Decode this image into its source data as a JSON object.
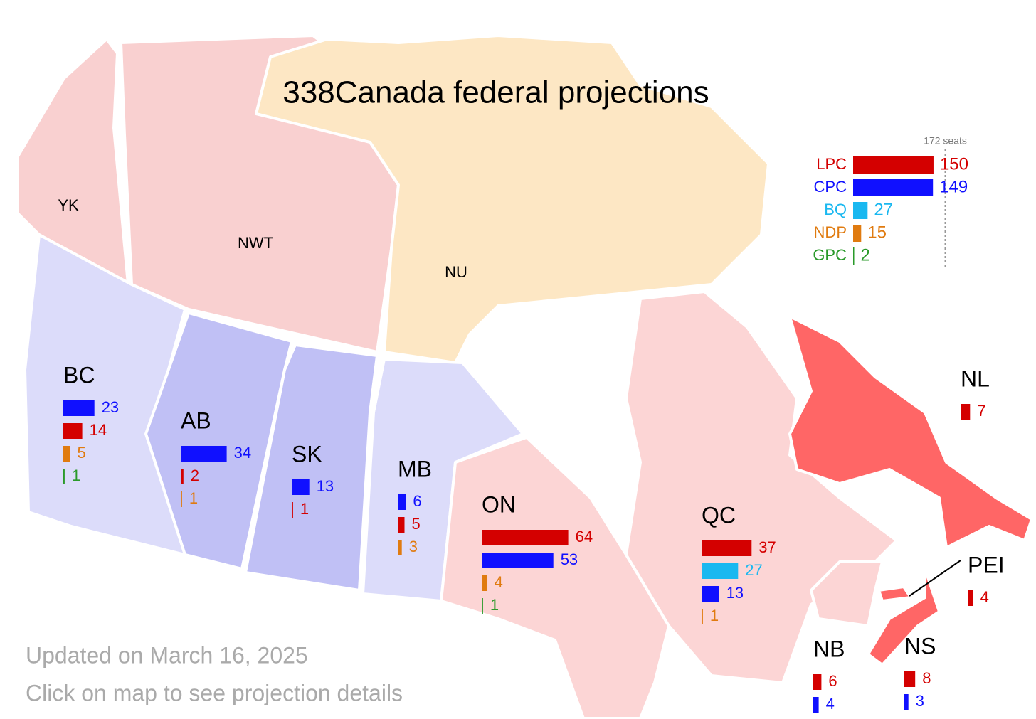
{
  "title": "338Canada federal projections",
  "national": {
    "majority": {
      "value": 172,
      "label": "172 seats"
    },
    "parties": [
      {
        "name": "LPC",
        "color": "#d40000",
        "seats": 150
      },
      {
        "name": "CPC",
        "color": "#1010ff",
        "seats": 149
      },
      {
        "name": "BQ",
        "color": "#1ab8f0",
        "seats": 27
      },
      {
        "name": "NDP",
        "color": "#e07b10",
        "seats": 15
      },
      {
        "name": "GPC",
        "color": "#2a9a2a",
        "seats": 2
      }
    ]
  },
  "territories": [
    {
      "label": "YK"
    },
    {
      "label": "NWT"
    },
    {
      "label": "NU"
    }
  ],
  "provinces": [
    {
      "label": "BC",
      "results": [
        {
          "color": "#1010ff",
          "seats": 23
        },
        {
          "color": "#d40000",
          "seats": 14
        },
        {
          "color": "#e07b10",
          "seats": 5
        },
        {
          "color": "#2a9a2a",
          "seats": 1
        }
      ]
    },
    {
      "label": "AB",
      "results": [
        {
          "color": "#1010ff",
          "seats": 34
        },
        {
          "color": "#d40000",
          "seats": 2
        },
        {
          "color": "#e07b10",
          "seats": 1
        }
      ]
    },
    {
      "label": "SK",
      "results": [
        {
          "color": "#1010ff",
          "seats": 13
        },
        {
          "color": "#d40000",
          "seats": 1
        }
      ]
    },
    {
      "label": "MB",
      "results": [
        {
          "color": "#1010ff",
          "seats": 6
        },
        {
          "color": "#d40000",
          "seats": 5
        },
        {
          "color": "#e07b10",
          "seats": 3
        }
      ]
    },
    {
      "label": "ON",
      "results": [
        {
          "color": "#d40000",
          "seats": 64
        },
        {
          "color": "#1010ff",
          "seats": 53
        },
        {
          "color": "#e07b10",
          "seats": 4
        },
        {
          "color": "#2a9a2a",
          "seats": 1
        }
      ]
    },
    {
      "label": "QC",
      "results": [
        {
          "color": "#d40000",
          "seats": 37
        },
        {
          "color": "#1ab8f0",
          "seats": 27
        },
        {
          "color": "#1010ff",
          "seats": 13
        },
        {
          "color": "#e07b10",
          "seats": 1
        }
      ]
    },
    {
      "label": "NL",
      "results": [
        {
          "color": "#d40000",
          "seats": 7
        }
      ]
    },
    {
      "label": "PEI",
      "results": [
        {
          "color": "#d40000",
          "seats": 4
        }
      ]
    },
    {
      "label": "NB",
      "results": [
        {
          "color": "#d40000",
          "seats": 6
        },
        {
          "color": "#1010ff",
          "seats": 4
        }
      ]
    },
    {
      "label": "NS",
      "results": [
        {
          "color": "#d40000",
          "seats": 8
        },
        {
          "color": "#1010ff",
          "seats": 3
        }
      ]
    }
  ],
  "footer": {
    "updated": "Updated on March 16, 2025",
    "hint": "Click on map to see projection details"
  }
}
